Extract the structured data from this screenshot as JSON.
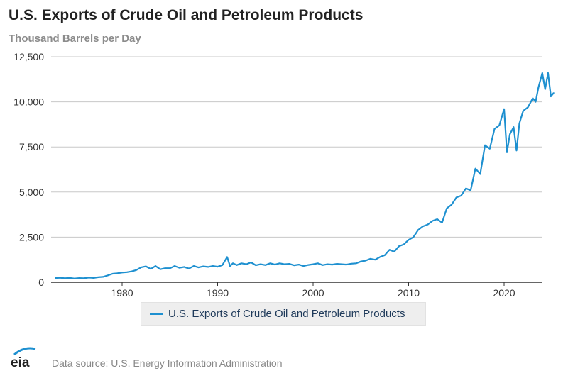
{
  "title": "U.S. Exports of Crude Oil and Petroleum Products",
  "subtitle": "Thousand Barrels per Day",
  "source": "Data source: U.S. Energy Information Administration",
  "logo_text": "eia",
  "colors": {
    "series": "#1e90d0",
    "grid": "#c8c8c8",
    "axis": "#333333"
  },
  "chart_data": {
    "type": "line",
    "title": "U.S. Exports of Crude Oil and Petroleum Products",
    "ylabel": "Thousand Barrels per Day",
    "xlabel": "",
    "xlim": [
      1973,
      2025.3
    ],
    "ylim": [
      0,
      12500
    ],
    "grid": true,
    "legend_position": "bottom",
    "x_ticks": [
      "1980",
      "1990",
      "2000",
      "2010",
      "2020"
    ],
    "x_tick_values": [
      1980,
      1990,
      2000,
      2010,
      2020
    ],
    "y_ticks": [
      "0",
      "2,500",
      "5,000",
      "7,500",
      "10,000",
      "12,500"
    ],
    "y_tick_values": [
      0,
      2500,
      5000,
      7500,
      10000,
      12500
    ],
    "series": [
      {
        "name": "U.S. Exports of Crude Oil and Petroleum Products",
        "x": [
          1973,
          1973.5,
          1974,
          1974.5,
          1975,
          1975.5,
          1976,
          1976.5,
          1977,
          1977.5,
          1978,
          1978.5,
          1979,
          1979.5,
          1980,
          1980.5,
          1981,
          1981.5,
          1982,
          1982.5,
          1983,
          1983.5,
          1984,
          1984.5,
          1985,
          1985.5,
          1986,
          1986.5,
          1987,
          1987.5,
          1988,
          1988.5,
          1989,
          1989.5,
          1990,
          1990.5,
          1991,
          1991.3,
          1991.6,
          1992,
          1992.5,
          1993,
          1993.5,
          1994,
          1994.5,
          1995,
          1995.5,
          1996,
          1996.5,
          1997,
          1997.5,
          1998,
          1998.5,
          1999,
          1999.5,
          2000,
          2000.5,
          2001,
          2001.5,
          2002,
          2002.5,
          2003,
          2003.5,
          2004,
          2004.5,
          2005,
          2005.5,
          2006,
          2006.5,
          2007,
          2007.5,
          2008,
          2008.5,
          2009,
          2009.5,
          2010,
          2010.5,
          2011,
          2011.5,
          2012,
          2012.5,
          2013,
          2013.5,
          2014,
          2014.5,
          2015,
          2015.5,
          2016,
          2016.5,
          2017,
          2017.5,
          2018,
          2018.5,
          2019,
          2019.5,
          2020,
          2020.3,
          2020.6,
          2021,
          2021.3,
          2021.6,
          2022,
          2022.5,
          2023,
          2023.3,
          2023.6,
          2024,
          2024.3,
          2024.6,
          2024.9,
          2025.2
        ],
        "values": [
          230,
          250,
          220,
          240,
          210,
          230,
          220,
          260,
          240,
          280,
          300,
          380,
          470,
          500,
          540,
          560,
          600,
          680,
          830,
          880,
          740,
          900,
          720,
          780,
          780,
          900,
          800,
          850,
          760,
          900,
          820,
          880,
          850,
          900,
          860,
          950,
          1400,
          900,
          1050,
          950,
          1050,
          1000,
          1100,
          940,
          1000,
          950,
          1050,
          980,
          1050,
          1000,
          1020,
          940,
          980,
          900,
          960,
          1000,
          1050,
          950,
          1000,
          980,
          1020,
          1000,
          980,
          1030,
          1050,
          1150,
          1200,
          1300,
          1250,
          1400,
          1500,
          1800,
          1700,
          2000,
          2100,
          2350,
          2500,
          2900,
          3100,
          3200,
          3400,
          3500,
          3300,
          4100,
          4300,
          4700,
          4800,
          5200,
          5100,
          6300,
          6000,
          7600,
          7400,
          8500,
          8700,
          9600,
          7200,
          8200,
          8600,
          7300,
          8800,
          9500,
          9700,
          10200,
          10000,
          10800,
          11600,
          10700,
          11600,
          10300,
          10500
        ]
      }
    ]
  }
}
